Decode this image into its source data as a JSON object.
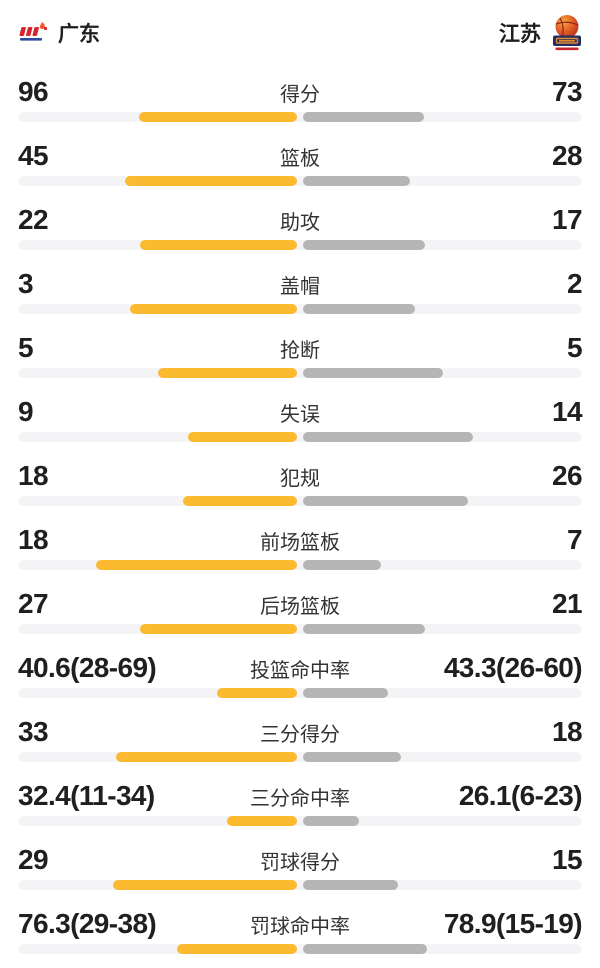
{
  "header": {
    "home": {
      "name": "广东",
      "logo_icon": "guangdong-team-logo",
      "logo_colors": {
        "letters": "#d6252e",
        "flame": "#f2572d",
        "strip": "#2b4ba0"
      }
    },
    "away": {
      "name": "江苏",
      "logo_icon": "jiangsu-team-logo",
      "logo_colors": {
        "ball_light": "#f59a23",
        "ball_dark": "#c0392b",
        "band": "#232e63",
        "strip": "#c4262e"
      }
    }
  },
  "colors": {
    "home_bar": "#fbba30",
    "away_bar": "#b5b5b5",
    "track": "#f4f4f6",
    "value_text": "#1f1f1f",
    "label_text": "#333333"
  },
  "rows": [
    {
      "label": "得分",
      "home": "96",
      "away": "73",
      "home_value": 96,
      "away_value": 73,
      "is_percent": false
    },
    {
      "label": "篮板",
      "home": "45",
      "away": "28",
      "home_value": 45,
      "away_value": 28,
      "is_percent": false
    },
    {
      "label": "助攻",
      "home": "22",
      "away": "17",
      "home_value": 22,
      "away_value": 17,
      "is_percent": false
    },
    {
      "label": "盖帽",
      "home": "3",
      "away": "2",
      "home_value": 3,
      "away_value": 2,
      "is_percent": false
    },
    {
      "label": "抢断",
      "home": "5",
      "away": "5",
      "home_value": 5,
      "away_value": 5,
      "is_percent": false
    },
    {
      "label": "失误",
      "home": "9",
      "away": "14",
      "home_value": 9,
      "away_value": 14,
      "is_percent": false
    },
    {
      "label": "犯规",
      "home": "18",
      "away": "26",
      "home_value": 18,
      "away_value": 26,
      "is_percent": false
    },
    {
      "label": "前场篮板",
      "home": "18",
      "away": "7",
      "home_value": 18,
      "away_value": 7,
      "is_percent": false
    },
    {
      "label": "后场篮板",
      "home": "27",
      "away": "21",
      "home_value": 27,
      "away_value": 21,
      "is_percent": false
    },
    {
      "label": "投篮命中率",
      "home": "40.6(28-69)",
      "away": "43.3(26-60)",
      "home_value": 40.6,
      "away_value": 43.3,
      "is_percent": true
    },
    {
      "label": "三分得分",
      "home": "33",
      "away": "18",
      "home_value": 33,
      "away_value": 18,
      "is_percent": false
    },
    {
      "label": "三分命中率",
      "home": "32.4(11-34)",
      "away": "26.1(6-23)",
      "home_value": 32.4,
      "away_value": 26.1,
      "is_percent": true
    },
    {
      "label": "罚球得分",
      "home": "29",
      "away": "15",
      "home_value": 29,
      "away_value": 15,
      "is_percent": false
    },
    {
      "label": "罚球命中率",
      "home": "76.3(29-38)",
      "away": "78.9(15-19)",
      "home_value": 76.3,
      "away_value": 78.9,
      "is_percent": true
    }
  ],
  "chart_data": {
    "type": "bar",
    "orientation": "paired-horizontal",
    "categories": [
      "得分",
      "篮板",
      "助攻",
      "盖帽",
      "抢断",
      "失误",
      "犯规",
      "前场篮板",
      "后场篮板",
      "投篮命中率",
      "三分得分",
      "三分命中率",
      "罚球得分",
      "罚球命中率"
    ],
    "series": [
      {
        "name": "广东",
        "color": "#fbba30",
        "values": [
          96,
          45,
          22,
          3,
          5,
          9,
          18,
          18,
          27,
          40.6,
          33,
          32.4,
          29,
          76.3
        ]
      },
      {
        "name": "江苏",
        "color": "#b5b5b5",
        "values": [
          73,
          28,
          17,
          2,
          5,
          14,
          26,
          7,
          21,
          43.3,
          18,
          26.1,
          15,
          78.9
        ]
      }
    ],
    "annotations": [
      "投篮命中率 28-69 vs 26-60",
      "三分命中率 11-34 vs 6-23",
      "罚球命中率 29-38 vs 15-19"
    ],
    "legend_position": "none",
    "grid": false
  }
}
